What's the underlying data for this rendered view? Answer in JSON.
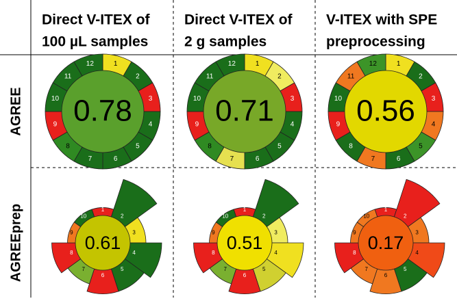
{
  "columns": [
    [
      "Direct V-ITEX of",
      "100 µL samples"
    ],
    [
      "Direct V-ITEX of",
      "2 g samples"
    ],
    [
      "V-ITEX with SPE",
      "preprocessing"
    ]
  ],
  "rows": [
    {
      "label": "AGREE",
      "kind": "agree",
      "cells": [
        {
          "score": 0.78,
          "color": "#5aa02c",
          "segments": [
            {
              "label": "1",
              "color": "#f0e020"
            },
            {
              "label": "2",
              "color": "#1a6e1a"
            },
            {
              "label": "3",
              "color": "#e8201c"
            },
            {
              "label": "4",
              "color": "#1a6e1a"
            },
            {
              "label": "5",
              "color": "#1a6e1a"
            },
            {
              "label": "6",
              "color": "#1a6e1a"
            },
            {
              "label": "7",
              "color": "#1a6e1a"
            },
            {
              "label": "8",
              "color": "#2f8a22"
            },
            {
              "label": "9",
              "color": "#e8201c"
            },
            {
              "label": "10",
              "color": "#1a6e1a"
            },
            {
              "label": "11",
              "color": "#1a6e1a"
            },
            {
              "label": "12",
              "color": "#1a6e1a"
            }
          ]
        },
        {
          "score": 0.71,
          "color": "#78a828",
          "segments": [
            {
              "label": "1",
              "color": "#f0e020"
            },
            {
              "label": "2",
              "color": "#f0ec60"
            },
            {
              "label": "3",
              "color": "#e8201c"
            },
            {
              "label": "4",
              "color": "#1a6e1a"
            },
            {
              "label": "5",
              "color": "#1a6e1a"
            },
            {
              "label": "6",
              "color": "#1a6e1a"
            },
            {
              "label": "7",
              "color": "#e6e050"
            },
            {
              "label": "8",
              "color": "#2f8a22"
            },
            {
              "label": "9",
              "color": "#e8201c"
            },
            {
              "label": "10",
              "color": "#1a6e1a"
            },
            {
              "label": "11",
              "color": "#1a6e1a"
            },
            {
              "label": "12",
              "color": "#1a6e1a"
            }
          ]
        },
        {
          "score": 0.56,
          "color": "#e2d800",
          "segments": [
            {
              "label": "1",
              "color": "#f0e020"
            },
            {
              "label": "2",
              "color": "#1a6e1a"
            },
            {
              "label": "3",
              "color": "#e8201c"
            },
            {
              "label": "4",
              "color": "#f07820"
            },
            {
              "label": "5",
              "color": "#3c9428"
            },
            {
              "label": "6",
              "color": "#1a6e1a"
            },
            {
              "label": "7",
              "color": "#f07820"
            },
            {
              "label": "8",
              "color": "#1a6e1a"
            },
            {
              "label": "9",
              "color": "#e8201c"
            },
            {
              "label": "10",
              "color": "#1a6e1a"
            },
            {
              "label": "11",
              "color": "#f07820"
            },
            {
              "label": "12",
              "color": "#3c9428"
            }
          ]
        }
      ]
    },
    {
      "label": "AGREEprep",
      "kind": "agreeprep",
      "cells": [
        {
          "score": 0.61,
          "color": "#c4c400",
          "segments": [
            {
              "label": "1",
              "color": "#e8201c",
              "weight": 1
            },
            {
              "label": "2",
              "color": "#1a6e1a",
              "weight": 5
            },
            {
              "label": "3",
              "color": "#f0e020",
              "weight": 2
            },
            {
              "label": "4",
              "color": "#1a6e1a",
              "weight": 4
            },
            {
              "label": "5",
              "color": "#1a6e1a",
              "weight": 3
            },
            {
              "label": "6",
              "color": "#e8201c",
              "weight": 3
            },
            {
              "label": "7",
              "color": "#7ab030",
              "weight": 2
            },
            {
              "label": "8",
              "color": "#e8201c",
              "weight": 3
            },
            {
              "label": "9",
              "color": "#f07820",
              "weight": 1
            },
            {
              "label": "10",
              "color": "#1a6e1a",
              "weight": 1
            }
          ]
        },
        {
          "score": 0.51,
          "color": "#f0e000",
          "segments": [
            {
              "label": "1",
              "color": "#e8201c",
              "weight": 1
            },
            {
              "label": "2",
              "color": "#1a6e1a",
              "weight": 5
            },
            {
              "label": "3",
              "color": "#f0ec60",
              "weight": 2
            },
            {
              "label": "4",
              "color": "#f0e020",
              "weight": 4
            },
            {
              "label": "5",
              "color": "#d0d030",
              "weight": 3
            },
            {
              "label": "6",
              "color": "#e8201c",
              "weight": 3
            },
            {
              "label": "7",
              "color": "#7ab030",
              "weight": 2
            },
            {
              "label": "8",
              "color": "#e8201c",
              "weight": 3
            },
            {
              "label": "9",
              "color": "#f07820",
              "weight": 1
            },
            {
              "label": "10",
              "color": "#1a6e1a",
              "weight": 1
            }
          ]
        },
        {
          "score": 0.17,
          "color": "#f06010",
          "segments": [
            {
              "label": "1",
              "color": "#e8201c",
              "weight": 1
            },
            {
              "label": "2",
              "color": "#e8201c",
              "weight": 5
            },
            {
              "label": "3",
              "color": "#f07820",
              "weight": 2
            },
            {
              "label": "4",
              "color": "#f04a18",
              "weight": 4
            },
            {
              "label": "5",
              "color": "#1a6e1a",
              "weight": 3
            },
            {
              "label": "6",
              "color": "#f07820",
              "weight": 3
            },
            {
              "label": "7",
              "color": "#f07820",
              "weight": 2
            },
            {
              "label": "8",
              "color": "#e8201c",
              "weight": 3
            },
            {
              "label": "9",
              "color": "#f07820",
              "weight": 1
            },
            {
              "label": "10",
              "color": "#f07820",
              "weight": 1
            }
          ]
        }
      ]
    }
  ]
}
